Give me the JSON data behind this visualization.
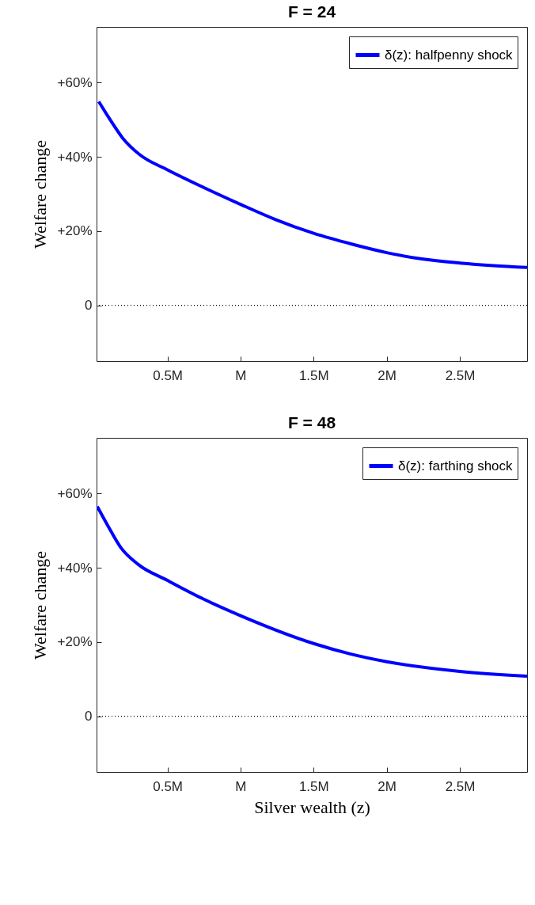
{
  "chart_data": [
    {
      "type": "line",
      "title": "F = 24",
      "ylabel": "Welfare change",
      "xlim": [
        0.015,
        2.96
      ],
      "ylim": [
        -15,
        75
      ],
      "xticks": [
        {
          "value": 0.5,
          "label": "0.5M"
        },
        {
          "value": 1,
          "label": "M"
        },
        {
          "value": 1.5,
          "label": "1.5M"
        },
        {
          "value": 2,
          "label": "2M"
        },
        {
          "value": 2.5,
          "label": "2.5M"
        }
      ],
      "yticks": [
        0,
        {
          "value": 20,
          "label": "+20%"
        },
        {
          "value": 40,
          "label": "+40%"
        },
        {
          "value": 60,
          "label": "+60%"
        }
      ],
      "series": [
        {
          "name": "δ(z): halfpenny shock",
          "color": "#0000ff",
          "x": [
            0.03,
            0.1,
            0.195,
            0.31,
            0.5,
            0.75,
            1.0,
            1.24,
            1.5,
            1.76,
            2.0,
            2.24,
            2.5,
            2.73,
            2.96
          ],
          "values": [
            54.9,
            50.5,
            45.0,
            40.6,
            36.5,
            31.7,
            27.2,
            23.1,
            19.4,
            16.5,
            14.2,
            12.5,
            11.4,
            10.7,
            10.2
          ]
        }
      ],
      "ref_lines": [
        {
          "axis": "y",
          "value": 0,
          "color": "#000000",
          "line_style": "dotted"
        }
      ],
      "legend": "top right",
      "grid": false,
      "line_style": "solid"
    },
    {
      "type": "line",
      "title": "F = 48",
      "xlabel": "Silver wealth (z)",
      "ylabel": "Welfare change",
      "xlim": [
        0.015,
        2.96
      ],
      "ylim": [
        -15,
        75
      ],
      "xticks": [
        {
          "value": 0.5,
          "label": "0.5M"
        },
        {
          "value": 1,
          "label": "M"
        },
        {
          "value": 1.5,
          "label": "1.5M"
        },
        {
          "value": 2,
          "label": "2M"
        },
        {
          "value": 2.5,
          "label": "2.5M"
        }
      ],
      "yticks": [
        0,
        {
          "value": 20,
          "label": "+20%"
        },
        {
          "value": 40,
          "label": "+40%"
        },
        {
          "value": 60,
          "label": "+60%"
        }
      ],
      "series": [
        {
          "name": "δ(z): farthing shock",
          "color": "#0000ff",
          "x": [
            0.02,
            0.09,
            0.18,
            0.3,
            0.5,
            0.74,
            1.0,
            1.5,
            1.75,
            2.0,
            2.5,
            2.96
          ],
          "values": [
            56.5,
            51.5,
            45.5,
            40.9,
            36.6,
            31.7,
            27.1,
            19.6,
            16.8,
            14.7,
            12.1,
            10.8
          ]
        }
      ],
      "ref_lines": [
        {
          "axis": "y",
          "value": 0,
          "color": "#000000",
          "line_style": "dotted"
        }
      ],
      "legend": "top right",
      "grid": false,
      "line_style": "solid"
    }
  ]
}
